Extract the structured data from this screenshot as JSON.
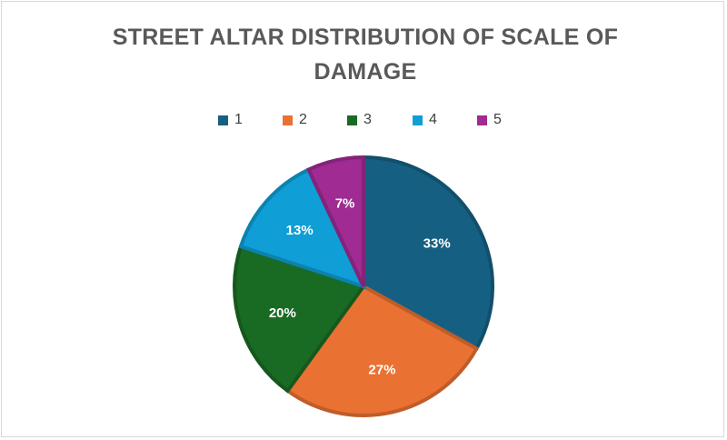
{
  "chart_data": {
    "type": "pie",
    "title": "STREET ALTAR DISTRIBUTION OF SCALE OF DAMAGE",
    "categories": [
      "1",
      "2",
      "3",
      "4",
      "5"
    ],
    "values": [
      33,
      27,
      20,
      13,
      7
    ],
    "data_labels": [
      "33%",
      "27%",
      "20%",
      "13%",
      "7%"
    ],
    "colors": [
      "#156082",
      "#E97132",
      "#196B24",
      "#0F9ED5",
      "#A02B93"
    ],
    "legend_position": "top"
  }
}
